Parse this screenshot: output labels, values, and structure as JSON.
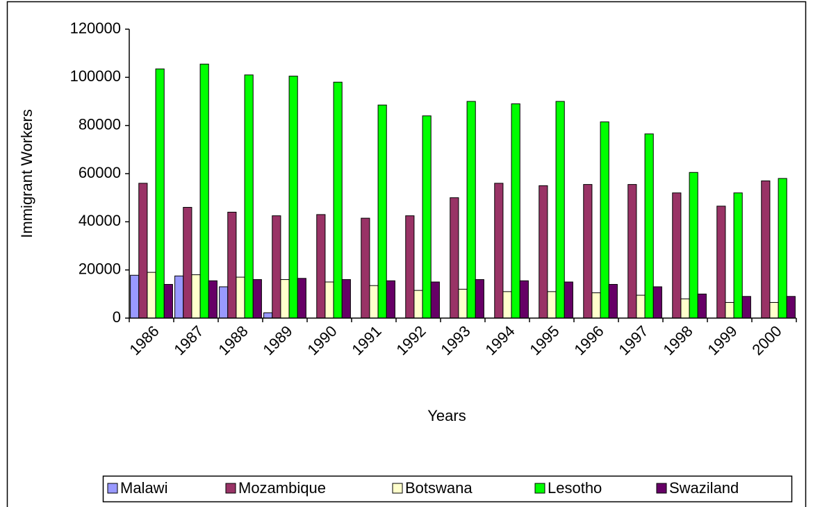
{
  "chart_data": {
    "type": "bar",
    "x_label": "Years",
    "y_label": "Immigrant Workers",
    "categories": [
      "1986",
      "1987",
      "1988",
      "1989",
      "1990",
      "1991",
      "1992",
      "1993",
      "1994",
      "1995",
      "1996",
      "1997",
      "1998",
      "1999",
      "2000"
    ],
    "series": [
      {
        "name": "Malawi",
        "color": "#9999ff",
        "values": [
          17800,
          17500,
          13000,
          2200,
          0,
          0,
          0,
          0,
          0,
          0,
          0,
          0,
          0,
          0,
          0
        ]
      },
      {
        "name": "Mozambique",
        "color": "#993366",
        "values": [
          56000,
          46000,
          44000,
          42500,
          43000,
          41500,
          42500,
          50000,
          56000,
          55000,
          55500,
          55500,
          52000,
          46500,
          57000
        ]
      },
      {
        "name": "Botswana",
        "color": "#ffffcc",
        "values": [
          19000,
          18000,
          17000,
          16000,
          15000,
          13500,
          11500,
          12000,
          11000,
          11000,
          10500,
          9500,
          8000,
          6500,
          6500
        ]
      },
      {
        "name": "Lesotho",
        "color": "#00ff00",
        "values": [
          103500,
          105500,
          101000,
          100500,
          98000,
          88500,
          84000,
          90000,
          89000,
          90000,
          81500,
          76500,
          60500,
          52000,
          58000
        ]
      },
      {
        "name": "Swaziland",
        "color": "#660066",
        "values": [
          14000,
          15500,
          16000,
          16500,
          16000,
          15500,
          15000,
          16000,
          15500,
          15000,
          14000,
          13000,
          10000,
          9000,
          9000
        ]
      }
    ],
    "ylim": [
      0,
      120000
    ],
    "yticks": [
      0,
      20000,
      40000,
      60000,
      80000,
      100000,
      120000
    ],
    "legend": "bottom"
  }
}
